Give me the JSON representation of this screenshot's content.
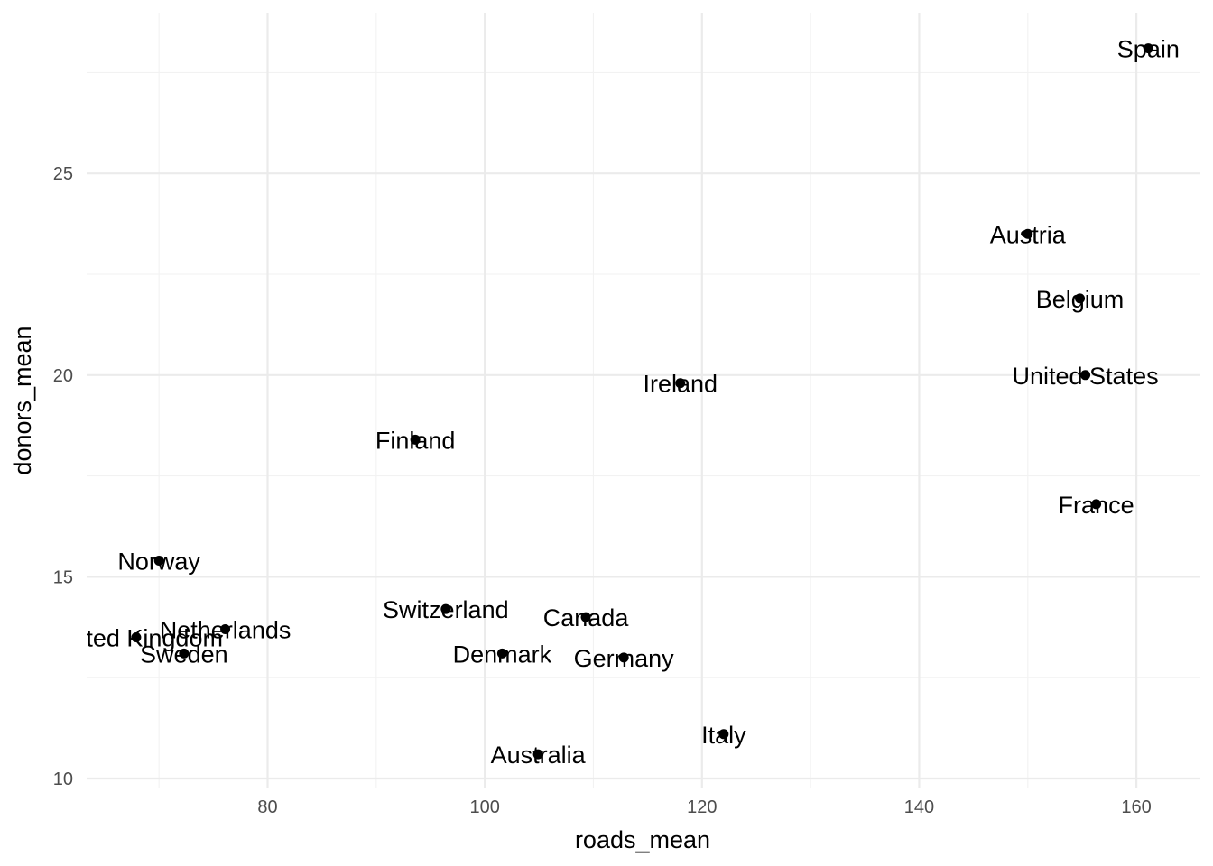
{
  "chart_data": {
    "type": "scatter",
    "title": "",
    "xlabel": "roads_mean",
    "ylabel": "donors_mean",
    "xlim": [
      63.5,
      164.0
    ],
    "ylim": [
      9.65,
      28.65
    ],
    "x_ticks": [
      80,
      100,
      120,
      140,
      160
    ],
    "y_ticks": [
      10,
      15,
      20,
      25
    ],
    "grid": true,
    "legend": "none",
    "points": [
      {
        "label": "Spain",
        "x": 161.1,
        "y": 28.1
      },
      {
        "label": "Austria",
        "x": 150.0,
        "y": 23.5
      },
      {
        "label": "Belgium",
        "x": 154.8,
        "y": 21.9
      },
      {
        "label": "United States",
        "x": 155.3,
        "y": 20.0
      },
      {
        "label": "Ireland",
        "x": 118.0,
        "y": 19.8
      },
      {
        "label": "Finland",
        "x": 93.6,
        "y": 18.4
      },
      {
        "label": "France",
        "x": 156.3,
        "y": 16.8
      },
      {
        "label": "Norway",
        "x": 70.0,
        "y": 15.4
      },
      {
        "label": "Switzerland",
        "x": 96.4,
        "y": 14.2
      },
      {
        "label": "Canada",
        "x": 109.3,
        "y": 14.0
      },
      {
        "label": "Netherlands",
        "x": 76.1,
        "y": 13.7
      },
      {
        "label": "United Kingdom",
        "x": 67.9,
        "y": 13.5
      },
      {
        "label": "Sweden",
        "x": 72.3,
        "y": 13.1
      },
      {
        "label": "Denmark",
        "x": 101.6,
        "y": 13.1
      },
      {
        "label": "Germany",
        "x": 112.8,
        "y": 13.0
      },
      {
        "label": "Italy",
        "x": 122.0,
        "y": 11.1
      },
      {
        "label": "Australia",
        "x": 104.9,
        "y": 10.6
      }
    ]
  },
  "colors": {
    "panel_background": "#ffffff",
    "major_grid": "#ebebeb",
    "minor_grid": "#f2f2f2",
    "points": "#000000",
    "labels": "#000000"
  }
}
